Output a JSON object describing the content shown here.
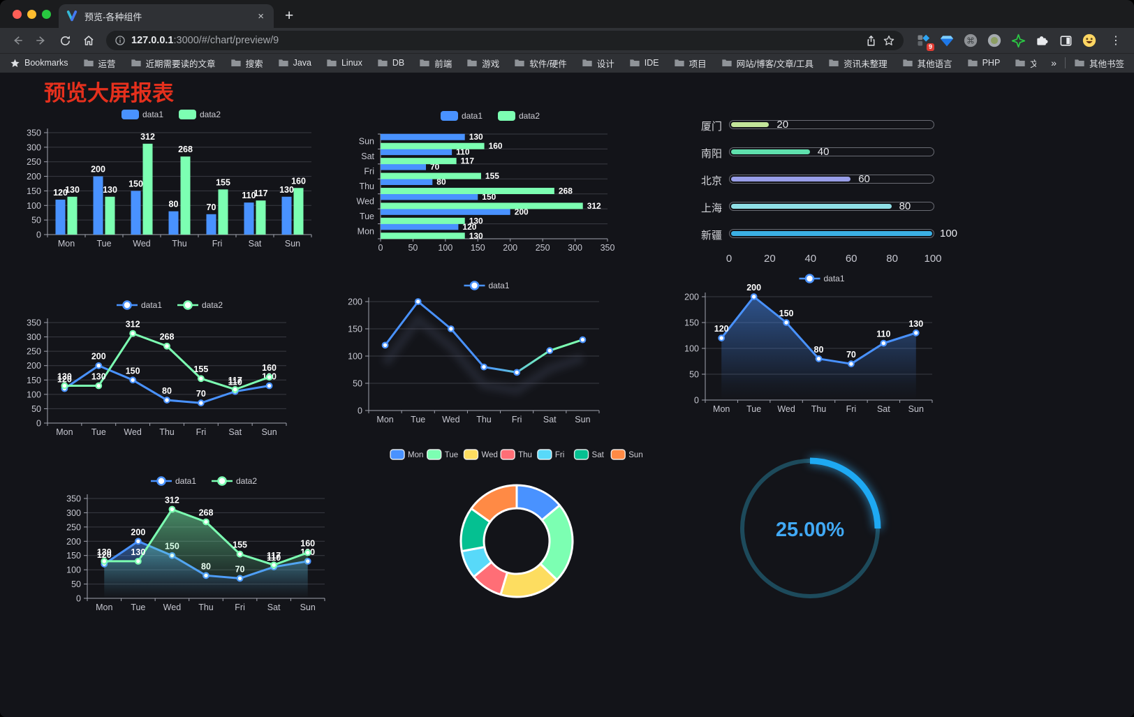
{
  "browser": {
    "tab_title": "预览-各种组件",
    "url_host": "127.0.0.1",
    "url_path": ":3000/#/chart/preview/9",
    "bookmarks_label": "Bookmarks",
    "bookmarks": [
      "运营",
      "近期需要读的文章",
      "搜索",
      "Java",
      "Linux",
      "DB",
      "前端",
      "游戏",
      "软件/硬件",
      "设计",
      "IDE",
      "项目",
      "网站/博客/文章/工具",
      "资讯未整理",
      "其他语言",
      "PHP",
      "文件服务器"
    ],
    "overflow_glyph": "»",
    "other_bookmarks": "其他书签",
    "extension_badge": "9",
    "glyphs": {
      "close_tab": "×",
      "new_tab": "+",
      "menu": "⋮"
    }
  },
  "page": {
    "title": "预览大屏报表",
    "title_color": "#e5301d",
    "background": "#131419"
  },
  "chart_data": [
    {
      "type": "bar",
      "categories": [
        "Mon",
        "Tue",
        "Wed",
        "Thu",
        "Fri",
        "Sat",
        "Sun"
      ],
      "series": [
        {
          "name": "data1",
          "color": "#4992ff",
          "values": [
            120,
            200,
            150,
            80,
            70,
            110,
            130
          ]
        },
        {
          "name": "data2",
          "color": "#7cffb2",
          "values": [
            130,
            130,
            312,
            268,
            155,
            117,
            160
          ]
        }
      ],
      "ylim": [
        0,
        350
      ],
      "ytick": 50,
      "legend_position": "top",
      "grid": true,
      "value_labels": true
    },
    {
      "type": "hbar",
      "categories": [
        "Mon",
        "Tue",
        "Wed",
        "Thu",
        "Fri",
        "Sat",
        "Sun"
      ],
      "display_order_top_to_bottom": [
        "Sun",
        "Sat",
        "Fri",
        "Thu",
        "Wed",
        "Tue",
        "Mon"
      ],
      "series": [
        {
          "name": "data1",
          "color": "#4992ff",
          "values": [
            120,
            200,
            150,
            80,
            70,
            110,
            130
          ]
        },
        {
          "name": "data2",
          "color": "#7cffb2",
          "values": [
            130,
            130,
            312,
            268,
            155,
            117,
            160
          ]
        }
      ],
      "xlim": [
        0,
        350
      ],
      "xtick": 50,
      "legend_position": "top",
      "value_labels": true
    },
    {
      "type": "progress-bars",
      "xlim": [
        0,
        100
      ],
      "xticks": [
        0,
        20,
        40,
        60,
        80,
        100
      ],
      "items": [
        {
          "label": "厦门",
          "value": 20,
          "color": "#c3e59a"
        },
        {
          "label": "南阳",
          "value": 40,
          "color": "#5fe0ad"
        },
        {
          "label": "北京",
          "value": 60,
          "color": "#989ee8"
        },
        {
          "label": "上海",
          "value": 80,
          "color": "#8fdfe6"
        },
        {
          "label": "新疆",
          "value": 100,
          "color": "#3bb0e4"
        }
      ]
    },
    {
      "type": "line",
      "categories": [
        "Mon",
        "Tue",
        "Wed",
        "Thu",
        "Fri",
        "Sat",
        "Sun"
      ],
      "series": [
        {
          "name": "data1",
          "color": "#4992ff",
          "values": [
            120,
            200,
            150,
            80,
            70,
            110,
            130
          ]
        },
        {
          "name": "data2",
          "color": "#7cffb2",
          "values": [
            130,
            130,
            312,
            268,
            155,
            117,
            160
          ]
        }
      ],
      "ylim": [
        0,
        350
      ],
      "ytick": 50,
      "legend_position": "top",
      "value_labels": true,
      "markers": true
    },
    {
      "type": "line",
      "categories": [
        "Mon",
        "Tue",
        "Wed",
        "Thu",
        "Fri",
        "Sat",
        "Sun"
      ],
      "series": [
        {
          "name": "data1",
          "color": "#4992ff",
          "color_gradient": [
            "#4992ff",
            "#7cffb2"
          ],
          "values": [
            120,
            200,
            150,
            80,
            70,
            110,
            130
          ]
        }
      ],
      "ylim": [
        0,
        200
      ],
      "ytick": 50,
      "legend_position": "top",
      "value_labels": false,
      "markers": true,
      "shadow": true
    },
    {
      "type": "area",
      "categories": [
        "Mon",
        "Tue",
        "Wed",
        "Thu",
        "Fri",
        "Sat",
        "Sun"
      ],
      "series": [
        {
          "name": "data1",
          "color": "#4992ff",
          "values": [
            120,
            200,
            150,
            80,
            70,
            110,
            130
          ]
        }
      ],
      "ylim": [
        0,
        200
      ],
      "ytick": 50,
      "legend_position": "top",
      "value_labels": true,
      "markers": true
    },
    {
      "type": "area",
      "categories": [
        "Mon",
        "Tue",
        "Wed",
        "Thu",
        "Fri",
        "Sat",
        "Sun"
      ],
      "series": [
        {
          "name": "data1",
          "color": "#4992ff",
          "values": [
            120,
            200,
            150,
            80,
            70,
            110,
            130
          ]
        },
        {
          "name": "data2",
          "color": "#7cffb2",
          "values": [
            130,
            130,
            312,
            268,
            155,
            117,
            160
          ]
        }
      ],
      "ylim": [
        0,
        350
      ],
      "ytick": 50,
      "legend_position": "top",
      "value_labels": true,
      "markers": true
    },
    {
      "type": "pie",
      "labels": [
        "Mon",
        "Tue",
        "Wed",
        "Thu",
        "Fri",
        "Sat",
        "Sun"
      ],
      "values": [
        120,
        200,
        150,
        80,
        70,
        110,
        130
      ],
      "colors": [
        "#4992ff",
        "#7cffb2",
        "#fddd60",
        "#ff6e76",
        "#58d9f9",
        "#05c091",
        "#ff8a45"
      ],
      "donut": true,
      "legend_position": "top",
      "border_color": "#ffffff"
    },
    {
      "type": "gauge",
      "value": 25,
      "display": "25.00%",
      "color": "#1ea9f3",
      "track_color": "#1d4a5b",
      "text_color": "#41a9f5"
    }
  ]
}
